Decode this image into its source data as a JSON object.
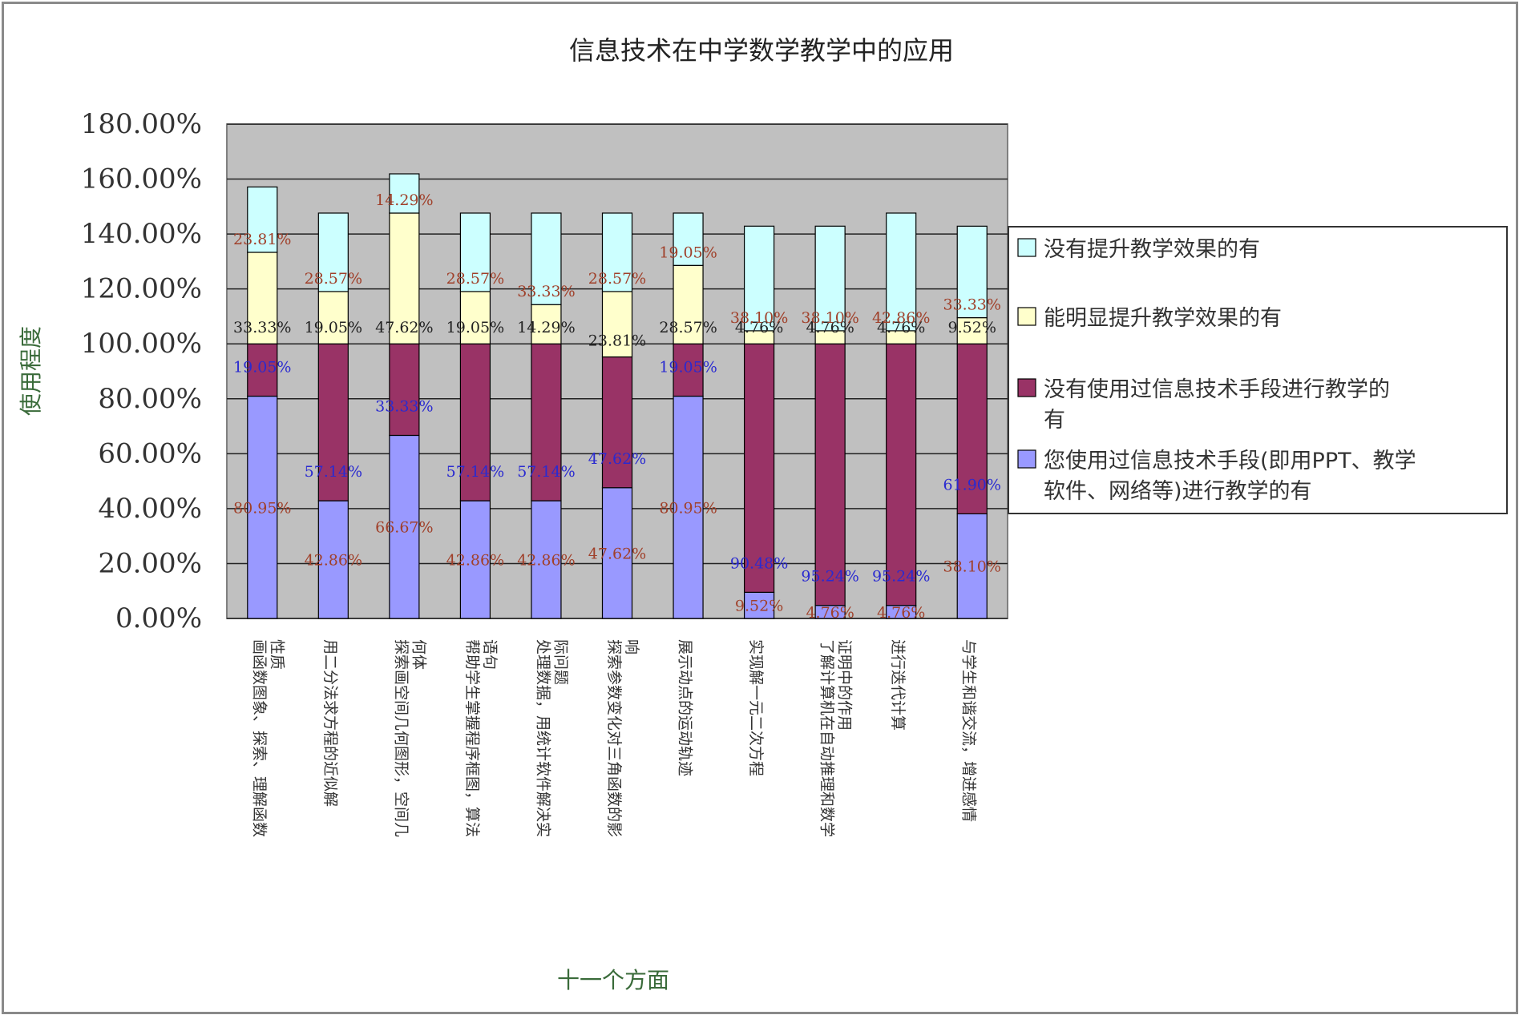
{
  "chart_data": {
    "type": "bar",
    "stacked": true,
    "title": "信息技术在中学数学教学中的应用",
    "xlabel": "十一个方面",
    "ylabel": "使用程度",
    "ylim": [
      0,
      1.8
    ],
    "yticks": [
      "0.00%",
      "20.00%",
      "40.00%",
      "60.00%",
      "80.00%",
      "100.00%",
      "120.00%",
      "140.00%",
      "160.00%",
      "180.00%"
    ],
    "grid": true,
    "legend_position": "right",
    "categories": [
      [
        "画函数图象、探索、理解函数",
        "性质"
      ],
      [
        "用二分法求方程的近似解"
      ],
      [
        "探索画空间几何图形，空间几",
        "何体"
      ],
      [
        "帮助学生掌握程序框图，算法",
        "语句"
      ],
      [
        "处理数据，用统计软件解决实",
        "际问题"
      ],
      [
        "探索参数变化对三角函数的影",
        "响"
      ],
      [
        "展示动点的运动轨迹"
      ],
      [
        "实现解一元二次方程"
      ],
      [
        "了解计算机在自动推理和数学",
        "证明中的作用"
      ],
      [
        "进行迭代计算"
      ],
      [
        "与学生和谐交流，增进感情"
      ]
    ],
    "series": [
      {
        "name": "您使用过信息技术手段(即用PPT、教学软件、网络等)进行教学的有",
        "color": "#9999ff",
        "label_color": "#a0402a",
        "values": [
          0.8095,
          0.4286,
          0.6667,
          0.4286,
          0.4286,
          0.4762,
          0.8095,
          0.0952,
          0.0476,
          0.0476,
          0.381
        ],
        "labels": [
          "80.95%",
          "42.86%",
          "66.67%",
          "42.86%",
          "42.86%",
          "47.62%",
          "80.95%",
          "9.52%",
          "4.76%",
          "4.76%",
          "38.10%"
        ]
      },
      {
        "name": "没有使用过信息技术手段进行教学的有",
        "color": "#993366",
        "label_color": "#2a2ad0",
        "values": [
          0.1905,
          0.5714,
          0.3333,
          0.5714,
          0.5714,
          0.4762,
          0.1905,
          0.9048,
          0.9524,
          0.9524,
          0.619
        ],
        "labels": [
          "19.05%",
          "57.14%",
          "33.33%",
          "57.14%",
          "57.14%",
          "47.62%",
          "19.05%",
          "90.48%",
          "95.24%",
          "95.24%",
          "61.90%"
        ]
      },
      {
        "name": "能明显提升教学效果的有",
        "color": "#ffffcc",
        "label_color": "#222222",
        "values": [
          0.3333,
          0.1905,
          0.4762,
          0.1905,
          0.1429,
          0.2381,
          0.2857,
          0.0476,
          0.0476,
          0.0476,
          0.0952
        ],
        "labels": [
          "33.33%",
          "19.05%",
          "47.62%",
          "19.05%",
          "14.29%",
          "23.81%",
          "28.57%",
          "4.76%",
          "4.76%",
          "4.76%",
          "9.52%"
        ]
      },
      {
        "name": "没有提升教学效果的有",
        "color": "#ccffff",
        "label_color": "#a0402a",
        "values": [
          0.2381,
          0.2857,
          0.1429,
          0.2857,
          0.3333,
          0.2857,
          0.1905,
          0.381,
          0.381,
          0.4286,
          0.3333
        ],
        "labels": [
          "23.81%",
          "28.57%",
          "14.29%",
          "28.57%",
          "33.33%",
          "28.57%",
          "19.05%",
          "38.10%",
          "38.10%",
          "42.86%",
          "33.33%"
        ]
      }
    ],
    "legend_order": [
      3,
      2,
      1,
      0
    ]
  }
}
